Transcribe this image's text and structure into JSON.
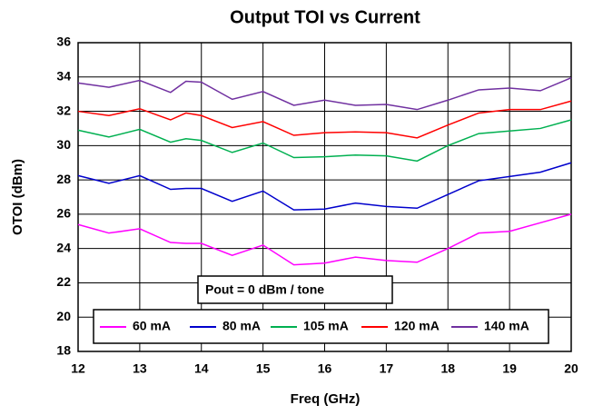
{
  "chart_data": {
    "type": "line",
    "title": "Output TOI vs Current",
    "xlabel": "Freq (GHz)",
    "ylabel": "OTOI (dBm)",
    "annotation": "Pout = 0 dBm / tone",
    "x": [
      12,
      12.5,
      13,
      13.5,
      13.75,
      14,
      14.5,
      15,
      15.5,
      16,
      16.5,
      17,
      17.5,
      18,
      18.5,
      19,
      19.5,
      20
    ],
    "series": [
      {
        "name": "60 mA",
        "color": "#ff00ff",
        "values": [
          25.4,
          24.9,
          25.15,
          24.35,
          24.3,
          24.3,
          23.6,
          24.2,
          23.05,
          23.15,
          23.5,
          23.3,
          23.2,
          24.0,
          24.9,
          25.0,
          25.5,
          26.0
        ]
      },
      {
        "name": "80 mA",
        "color": "#0000cc",
        "values": [
          28.25,
          27.8,
          28.25,
          27.45,
          27.5,
          27.5,
          26.75,
          27.35,
          26.25,
          26.3,
          26.65,
          26.45,
          26.35,
          27.15,
          27.95,
          28.2,
          28.45,
          29.0
        ]
      },
      {
        "name": "105 mA",
        "color": "#00b050",
        "values": [
          30.9,
          30.5,
          30.95,
          30.2,
          30.4,
          30.3,
          29.6,
          30.15,
          29.3,
          29.35,
          29.45,
          29.4,
          29.1,
          30.0,
          30.7,
          30.85,
          31.0,
          31.5
        ]
      },
      {
        "name": "120 mA",
        "color": "#ff0000",
        "values": [
          32.0,
          31.75,
          32.15,
          31.5,
          31.9,
          31.75,
          31.05,
          31.4,
          30.6,
          30.75,
          30.8,
          30.75,
          30.45,
          31.2,
          31.9,
          32.1,
          32.1,
          32.6
        ]
      },
      {
        "name": "140 mA",
        "color": "#7030a0",
        "values": [
          33.65,
          33.4,
          33.8,
          33.1,
          33.75,
          33.7,
          32.7,
          33.15,
          32.35,
          32.65,
          32.35,
          32.4,
          32.1,
          32.65,
          33.25,
          33.35,
          33.2,
          33.95
        ]
      }
    ],
    "xlim": [
      12,
      20
    ],
    "xticks": [
      12,
      13,
      14,
      15,
      16,
      17,
      18,
      19,
      20
    ],
    "ylim": [
      18,
      36
    ],
    "yticks": [
      18,
      20,
      22,
      24,
      26,
      28,
      30,
      32,
      34,
      36
    ],
    "grid": true
  }
}
